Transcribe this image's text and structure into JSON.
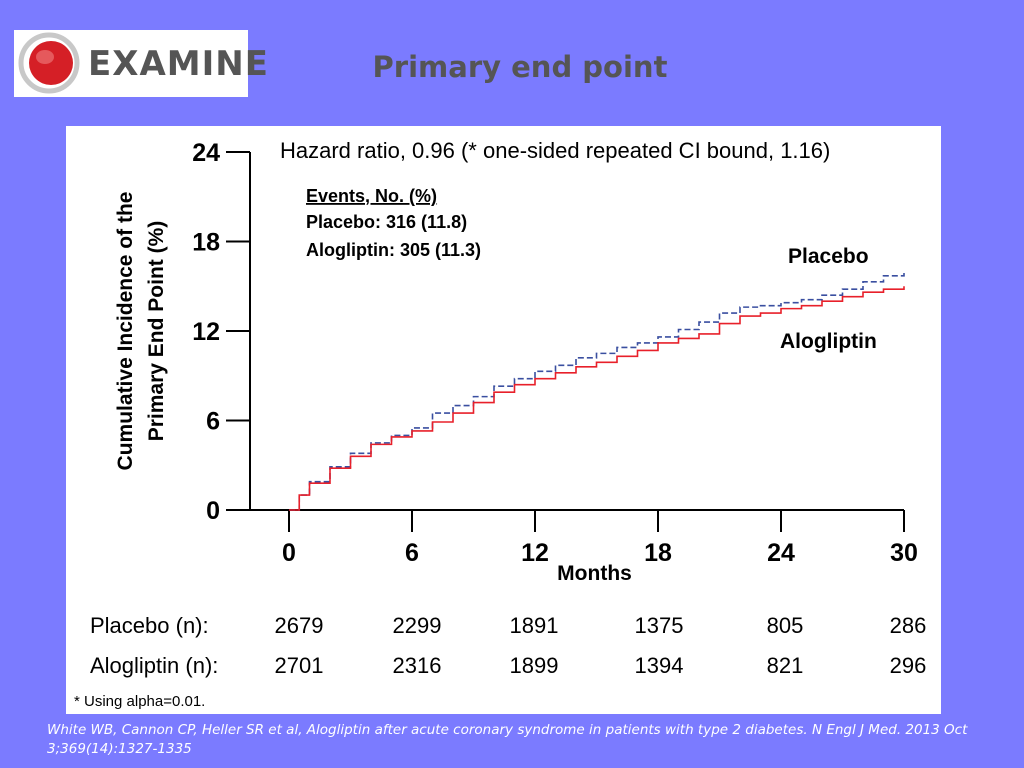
{
  "slide": {
    "logo_text": "EXAMINE",
    "title": "Primary end point",
    "citation": "White WB, Cannon CP, Heller SR et al, Alogliptin after acute coronary syndrome in patients with type 2 diabetes. N Engl J Med. 2013 Oct 3;369(14):1327-1335",
    "footnote": "* Using alpha=0.01.",
    "colors": {
      "background": "#7b7bff",
      "placebo": "#3a4fa0",
      "alogliptin": "#e8202a",
      "logo_red": "#d51f26"
    }
  },
  "chart_data": {
    "type": "line",
    "title": "Hazard ratio, 0.96 (* one-sided repeated CI bound, 1.16)",
    "xlabel": "Months",
    "ylabel": [
      "Cumulative Incidence of the",
      "Primary End Point (%)"
    ],
    "xlim": [
      0,
      30
    ],
    "ylim": [
      0,
      24
    ],
    "xticks": [
      0,
      6,
      12,
      18,
      24,
      30
    ],
    "yticks": [
      0,
      6,
      12,
      18,
      24
    ],
    "events_box": {
      "header": "Events, No. (%)",
      "lines": [
        "Placebo: 316 (11.8)",
        "Alogliptin: 305 (11.3)"
      ]
    },
    "series": [
      {
        "name": "Placebo",
        "style": "dashed",
        "color": "#3a4fa0",
        "x": [
          0,
          0.5,
          1,
          2,
          3,
          4,
          5,
          6,
          7,
          8,
          9,
          10,
          11,
          12,
          13,
          14,
          15,
          16,
          17,
          18,
          19,
          20,
          21,
          22,
          23,
          24,
          25,
          26,
          27,
          28,
          29,
          30
        ],
        "y": [
          0,
          1.0,
          1.9,
          2.9,
          3.8,
          4.5,
          5.0,
          5.5,
          6.5,
          7.0,
          7.6,
          8.3,
          8.8,
          9.3,
          9.7,
          10.2,
          10.5,
          10.9,
          11.2,
          11.6,
          12.1,
          12.6,
          13.2,
          13.6,
          13.7,
          13.9,
          14.1,
          14.4,
          14.8,
          15.3,
          15.7,
          16.0
        ]
      },
      {
        "name": "Alogliptin",
        "style": "solid",
        "color": "#e8202a",
        "x": [
          0,
          0.5,
          1,
          2,
          3,
          4,
          5,
          6,
          7,
          8,
          9,
          10,
          11,
          12,
          13,
          14,
          15,
          16,
          17,
          18,
          19,
          20,
          21,
          22,
          23,
          24,
          25,
          26,
          27,
          28,
          29,
          30
        ],
        "y": [
          0,
          1.0,
          1.8,
          2.8,
          3.6,
          4.4,
          4.9,
          5.3,
          5.9,
          6.5,
          7.2,
          7.9,
          8.4,
          8.8,
          9.2,
          9.6,
          9.9,
          10.3,
          10.7,
          11.2,
          11.5,
          11.8,
          12.5,
          13.0,
          13.2,
          13.5,
          13.7,
          14.0,
          14.3,
          14.6,
          14.8,
          15.0
        ]
      }
    ],
    "at_risk": {
      "rows": [
        {
          "label": "Placebo (n):",
          "values": [
            "2679",
            "2299",
            "1891",
            "1375",
            "805",
            "286"
          ]
        },
        {
          "label": "Alogliptin (n):",
          "values": [
            "2701",
            "2316",
            "1899",
            "1394",
            "821",
            "296"
          ]
        }
      ]
    }
  }
}
